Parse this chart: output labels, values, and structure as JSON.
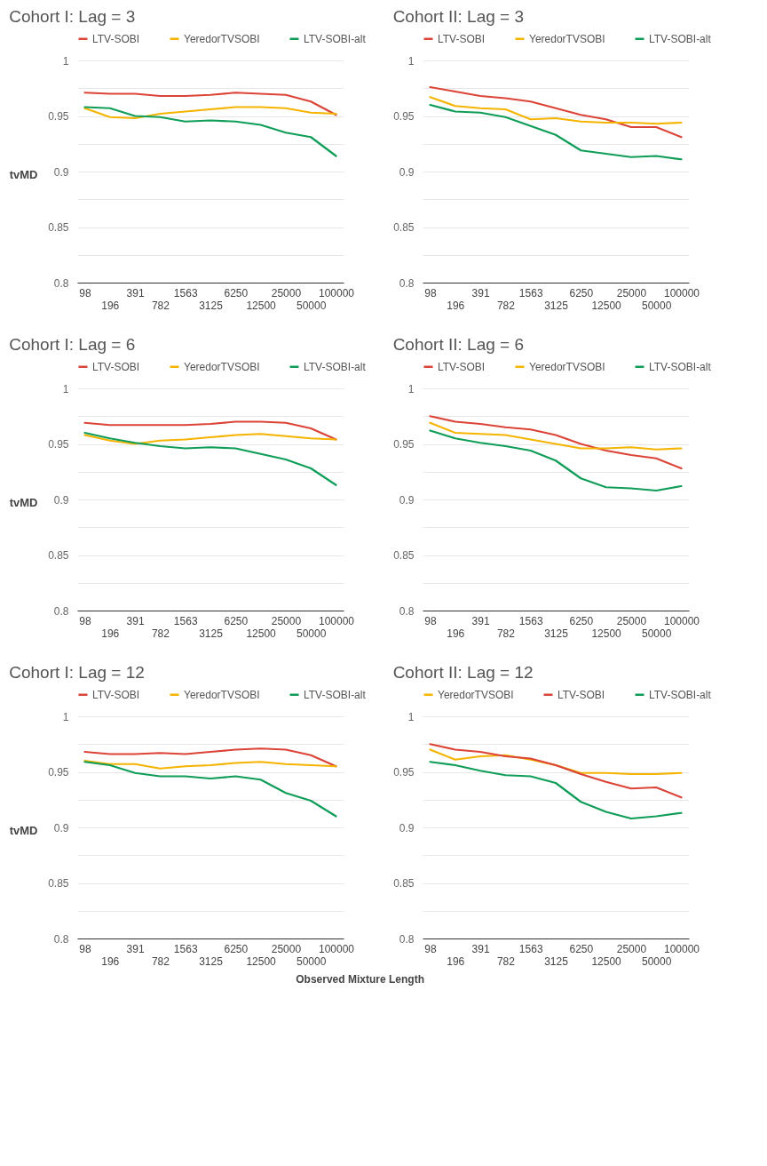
{
  "chart_data": [
    {
      "type": "line",
      "title": "Cohort I: Lag = 3",
      "ylabel": "tvMD",
      "categories": [
        "98",
        "196",
        "391",
        "782",
        "1563",
        "3125",
        "6250",
        "12500",
        "25000",
        "50000",
        "100000"
      ],
      "ylim": [
        0.8,
        1
      ],
      "yticks": [
        0.8,
        {
          "value": 0.825,
          "label": null
        },
        0.85,
        {
          "value": 0.875,
          "label": null
        },
        0.9,
        {
          "value": 0.925,
          "label": null
        },
        0.95,
        {
          "value": 0.975,
          "label": null
        },
        1
      ],
      "grid": "y",
      "legend": "top",
      "series": [
        {
          "name": "LTV-SOBI",
          "color": "#db4437",
          "values": [
            0.971,
            0.97,
            0.97,
            0.968,
            0.968,
            0.969,
            0.971,
            0.97,
            0.969,
            0.963,
            0.951
          ]
        },
        {
          "name": "YeredorTVSOBI",
          "color": "#f4b400",
          "values": [
            0.957,
            0.949,
            0.948,
            0.952,
            0.954,
            0.956,
            0.958,
            0.958,
            0.957,
            0.953,
            0.952
          ]
        },
        {
          "name": "LTV-SOBI-alt",
          "color": "#0f9d58",
          "values": [
            0.958,
            0.957,
            0.95,
            0.949,
            0.945,
            0.946,
            0.945,
            0.942,
            0.935,
            0.931,
            0.914
          ]
        }
      ]
    },
    {
      "type": "line",
      "title": "Cohort II: Lag = 3",
      "categories": [
        "98",
        "196",
        "391",
        "782",
        "1563",
        "3125",
        "6250",
        "12500",
        "25000",
        "50000",
        "100000"
      ],
      "ylim": [
        0.8,
        1
      ],
      "yticks": [
        0.8,
        {
          "value": 0.825,
          "label": null
        },
        0.85,
        {
          "value": 0.875,
          "label": null
        },
        0.9,
        {
          "value": 0.925,
          "label": null
        },
        0.95,
        {
          "value": 0.975,
          "label": null
        },
        1
      ],
      "grid": "y",
      "legend": "top",
      "series": [
        {
          "name": "LTV-SOBI",
          "color": "#db4437",
          "values": [
            0.976,
            0.972,
            0.968,
            0.966,
            0.963,
            0.957,
            0.951,
            0.947,
            0.94,
            0.94,
            0.931
          ]
        },
        {
          "name": "YeredorTVSOBI",
          "color": "#f4b400",
          "values": [
            0.967,
            0.959,
            0.957,
            0.956,
            0.947,
            0.948,
            0.945,
            0.944,
            0.944,
            0.943,
            0.944
          ]
        },
        {
          "name": "LTV-SOBI-alt",
          "color": "#0f9d58",
          "values": [
            0.96,
            0.954,
            0.953,
            0.949,
            0.941,
            0.933,
            0.919,
            0.916,
            0.913,
            0.914,
            0.911
          ]
        }
      ]
    },
    {
      "type": "line",
      "title": "Cohort I: Lag = 6",
      "ylabel": "tvMD",
      "categories": [
        "98",
        "196",
        "391",
        "782",
        "1563",
        "3125",
        "6250",
        "12500",
        "25000",
        "50000",
        "100000"
      ],
      "ylim": [
        0.8,
        1
      ],
      "yticks": [
        0.8,
        {
          "value": 0.825,
          "label": null
        },
        0.85,
        {
          "value": 0.875,
          "label": null
        },
        0.9,
        {
          "value": 0.925,
          "label": null
        },
        0.95,
        {
          "value": 0.975,
          "label": null
        },
        1
      ],
      "grid": "y",
      "legend": "top",
      "series": [
        {
          "name": "LTV-SOBI",
          "color": "#db4437",
          "values": [
            0.969,
            0.967,
            0.967,
            0.967,
            0.967,
            0.968,
            0.97,
            0.97,
            0.969,
            0.964,
            0.954
          ]
        },
        {
          "name": "YeredorTVSOBI",
          "color": "#f4b400",
          "values": [
            0.958,
            0.953,
            0.95,
            0.953,
            0.954,
            0.956,
            0.958,
            0.959,
            0.957,
            0.955,
            0.954
          ]
        },
        {
          "name": "LTV-SOBI-alt",
          "color": "#0f9d58",
          "values": [
            0.96,
            0.955,
            0.951,
            0.948,
            0.946,
            0.947,
            0.946,
            0.941,
            0.936,
            0.928,
            0.913
          ]
        }
      ]
    },
    {
      "type": "line",
      "title": "Cohort II: Lag = 6",
      "categories": [
        "98",
        "196",
        "391",
        "782",
        "1563",
        "3125",
        "6250",
        "12500",
        "25000",
        "50000",
        "100000"
      ],
      "ylim": [
        0.8,
        1
      ],
      "yticks": [
        0.8,
        {
          "value": 0.825,
          "label": null
        },
        0.85,
        {
          "value": 0.875,
          "label": null
        },
        0.9,
        {
          "value": 0.925,
          "label": null
        },
        0.95,
        {
          "value": 0.975,
          "label": null
        },
        1
      ],
      "grid": "y",
      "legend": "top",
      "series": [
        {
          "name": "LTV-SOBI",
          "color": "#db4437",
          "values": [
            0.975,
            0.97,
            0.968,
            0.965,
            0.963,
            0.958,
            0.95,
            0.944,
            0.94,
            0.937,
            0.928
          ]
        },
        {
          "name": "YeredorTVSOBI",
          "color": "#f4b400",
          "values": [
            0.969,
            0.96,
            0.959,
            0.958,
            0.954,
            0.95,
            0.946,
            0.946,
            0.947,
            0.945,
            0.946
          ]
        },
        {
          "name": "LTV-SOBI-alt",
          "color": "#0f9d58",
          "values": [
            0.962,
            0.955,
            0.951,
            0.948,
            0.944,
            0.935,
            0.919,
            0.911,
            0.91,
            0.908,
            0.912
          ]
        }
      ]
    },
    {
      "type": "line",
      "title": "Cohort I: Lag = 12",
      "ylabel": "tvMD",
      "xlabel": "Observed Mixture Length",
      "categories": [
        "98",
        "196",
        "391",
        "782",
        "1563",
        "3125",
        "6250",
        "12500",
        "25000",
        "50000",
        "100000"
      ],
      "ylim": [
        0.8,
        1
      ],
      "yticks": [
        0.8,
        {
          "value": 0.825,
          "label": null
        },
        0.85,
        {
          "value": 0.875,
          "label": null
        },
        0.9,
        {
          "value": 0.925,
          "label": null
        },
        0.95,
        {
          "value": 0.975,
          "label": null
        },
        1
      ],
      "grid": "y",
      "legend": "top",
      "series": [
        {
          "name": "LTV-SOBI",
          "color": "#db4437",
          "values": [
            0.968,
            0.966,
            0.966,
            0.967,
            0.966,
            0.968,
            0.97,
            0.971,
            0.97,
            0.965,
            0.955
          ]
        },
        {
          "name": "YeredorTVSOBI",
          "color": "#f4b400",
          "values": [
            0.96,
            0.957,
            0.957,
            0.953,
            0.955,
            0.956,
            0.958,
            0.959,
            0.957,
            0.956,
            0.955
          ]
        },
        {
          "name": "LTV-SOBI-alt",
          "color": "#0f9d58",
          "values": [
            0.959,
            0.956,
            0.949,
            0.946,
            0.946,
            0.944,
            0.946,
            0.943,
            0.931,
            0.924,
            0.91
          ]
        }
      ]
    },
    {
      "type": "line",
      "title": "Cohort II: Lag = 12",
      "categories": [
        "98",
        "196",
        "391",
        "782",
        "1563",
        "3125",
        "6250",
        "12500",
        "25000",
        "50000",
        "100000"
      ],
      "ylim": [
        0.8,
        1
      ],
      "yticks": [
        0.8,
        {
          "value": 0.825,
          "label": null
        },
        0.85,
        {
          "value": 0.875,
          "label": null
        },
        0.9,
        {
          "value": 0.925,
          "label": null
        },
        0.95,
        {
          "value": 0.975,
          "label": null
        },
        1
      ],
      "grid": "y",
      "legend": "top",
      "series": [
        {
          "name": "YeredorTVSOBI",
          "color": "#f4b400",
          "values": [
            0.97,
            0.961,
            0.964,
            0.965,
            0.961,
            0.956,
            0.949,
            0.949,
            0.948,
            0.948,
            0.949
          ]
        },
        {
          "name": "LTV-SOBI",
          "color": "#db4437",
          "values": [
            0.975,
            0.97,
            0.968,
            0.964,
            0.962,
            0.956,
            0.948,
            0.941,
            0.935,
            0.936,
            0.927
          ]
        },
        {
          "name": "LTV-SOBI-alt",
          "color": "#0f9d58",
          "values": [
            0.959,
            0.956,
            0.951,
            0.947,
            0.946,
            0.94,
            0.923,
            0.914,
            0.908,
            0.91,
            0.913
          ]
        }
      ]
    }
  ]
}
